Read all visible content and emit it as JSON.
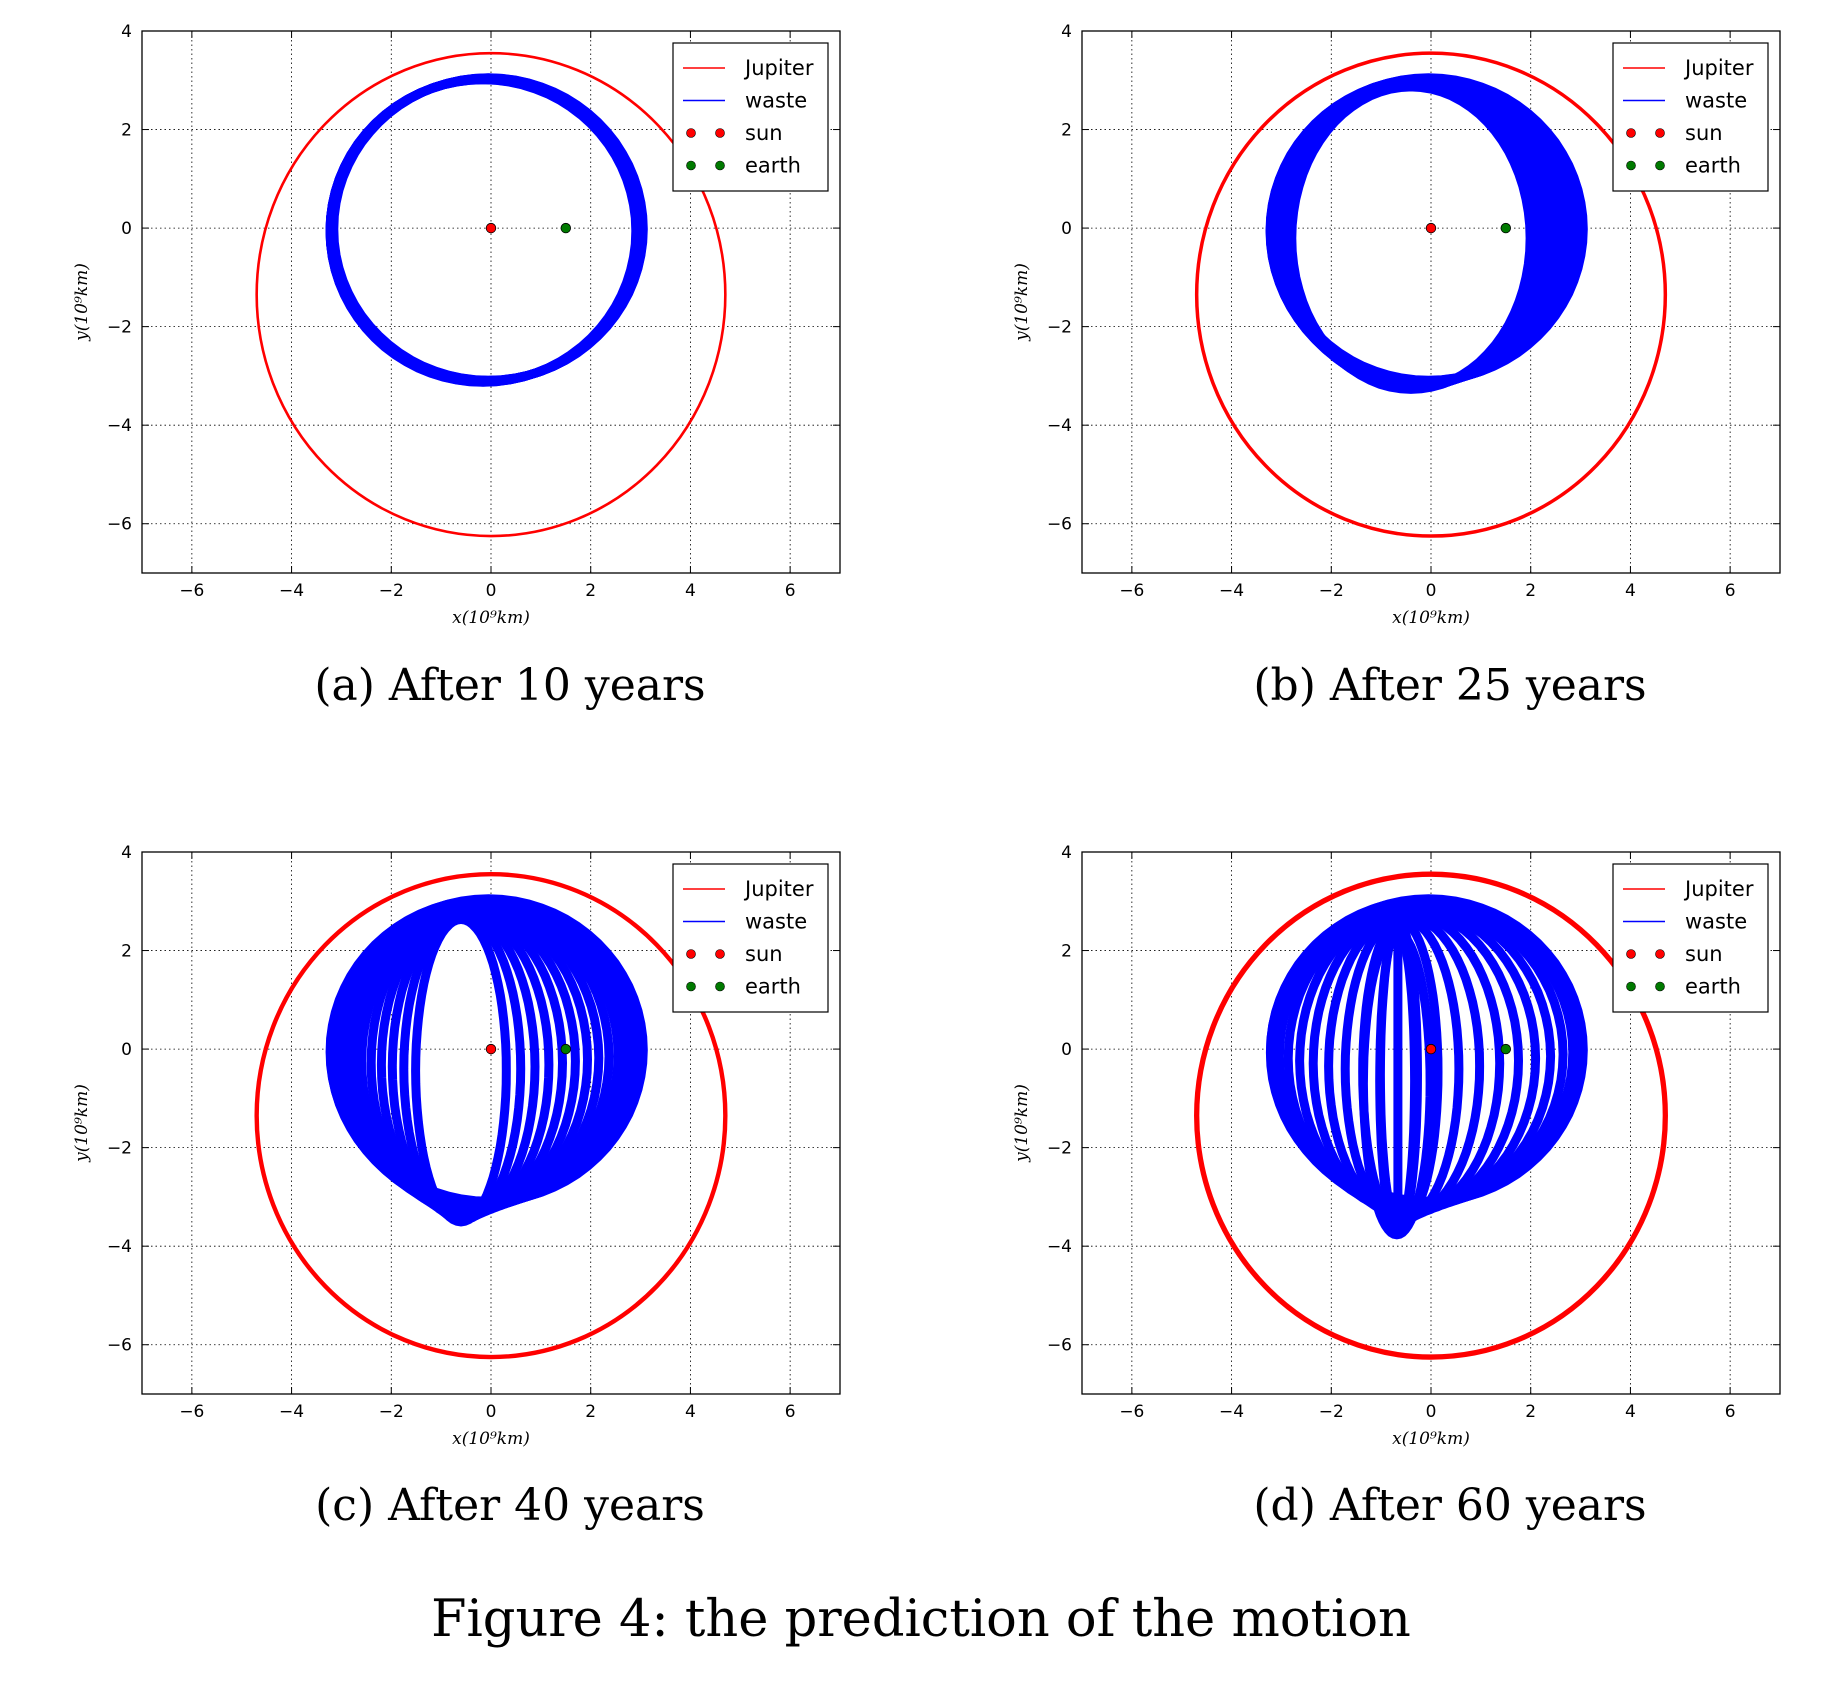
{
  "figure_caption": "Figure 4: the prediction of the motion",
  "colors": {
    "jupiter": "#ff0000",
    "waste": "#0000ff",
    "sun": "#ff0000",
    "earth": "#007a00"
  },
  "chart_data": [
    {
      "type": "line",
      "caption": "(a) After 10 years",
      "xlabel": "x(10⁹km)",
      "ylabel": "y(10⁹km)",
      "xlim": [
        -7,
        7
      ],
      "ylim": [
        -7,
        4
      ],
      "xticks": [
        "−6",
        "−4",
        "−2",
        "0",
        "2",
        "4",
        "6"
      ],
      "yticks": [
        "4",
        "2",
        "0",
        "−2",
        "−4",
        "−6"
      ],
      "grid": true,
      "legend_position": "top-right",
      "series": [
        {
          "name": "Jupiter",
          "kind": "orbit",
          "center": [
            0,
            -1.35
          ],
          "rx": 4.7,
          "ry": 4.9
        },
        {
          "name": "waste",
          "kind": "band",
          "precession_deg": 12,
          "r": 3.0
        },
        {
          "name": "sun",
          "kind": "point",
          "x": 0,
          "y": 0
        },
        {
          "name": "earth",
          "kind": "point",
          "x": 1.5,
          "y": 0
        }
      ]
    },
    {
      "type": "line",
      "caption": "(b) After 25 years",
      "xlabel": "x(10⁹km)",
      "ylabel": "y(10⁹km)",
      "xlim": [
        -7,
        7
      ],
      "ylim": [
        -7,
        4
      ],
      "xticks": [
        "−6",
        "−4",
        "−2",
        "0",
        "2",
        "4",
        "6"
      ],
      "yticks": [
        "4",
        "2",
        "0",
        "−2",
        "−4",
        "−6"
      ],
      "grid": true,
      "legend_position": "top-right",
      "series": [
        {
          "name": "Jupiter",
          "kind": "orbit",
          "center": [
            0,
            -1.35
          ],
          "rx": 4.7,
          "ry": 4.9
        },
        {
          "name": "waste",
          "kind": "band",
          "precession_deg": 40,
          "r": 3.0
        },
        {
          "name": "sun",
          "kind": "point",
          "x": 0,
          "y": 0
        },
        {
          "name": "earth",
          "kind": "point",
          "x": 1.5,
          "y": 0
        }
      ]
    },
    {
      "type": "line",
      "caption": "(c) After 40 years",
      "xlabel": "x(10⁹km)",
      "ylabel": "y(10⁹km)",
      "xlim": [
        -7,
        7
      ],
      "ylim": [
        -7,
        4
      ],
      "xticks": [
        "−6",
        "−4",
        "−2",
        "0",
        "2",
        "4",
        "6"
      ],
      "yticks": [
        "4",
        "2",
        "0",
        "−2",
        "−4",
        "−6"
      ],
      "grid": true,
      "legend_position": "top-right",
      "series": [
        {
          "name": "Jupiter",
          "kind": "orbit",
          "center": [
            0,
            -1.35
          ],
          "rx": 4.7,
          "ry": 4.9
        },
        {
          "name": "waste",
          "kind": "band",
          "precession_deg": 72,
          "r": 3.0
        },
        {
          "name": "sun",
          "kind": "point",
          "x": 0,
          "y": 0
        },
        {
          "name": "earth",
          "kind": "point",
          "x": 1.5,
          "y": 0
        }
      ]
    },
    {
      "type": "line",
      "caption": "(d) After 60 years",
      "xlabel": "x(10⁹km)",
      "ylabel": "y(10⁹km)",
      "xlim": [
        -7,
        7
      ],
      "ylim": [
        -7,
        4
      ],
      "xticks": [
        "−6",
        "−4",
        "−2",
        "0",
        "2",
        "4",
        "6"
      ],
      "yticks": [
        "4",
        "2",
        "0",
        "−2",
        "−4",
        "−6"
      ],
      "grid": true,
      "legend_position": "top-right",
      "series": [
        {
          "name": "Jupiter",
          "kind": "orbit",
          "center": [
            0,
            -1.35
          ],
          "rx": 4.7,
          "ry": 4.9
        },
        {
          "name": "waste",
          "kind": "band",
          "precession_deg": 105,
          "r": 3.0
        },
        {
          "name": "sun",
          "kind": "point",
          "x": 0,
          "y": 0
        },
        {
          "name": "earth",
          "kind": "point",
          "x": 1.5,
          "y": 0
        }
      ]
    }
  ]
}
